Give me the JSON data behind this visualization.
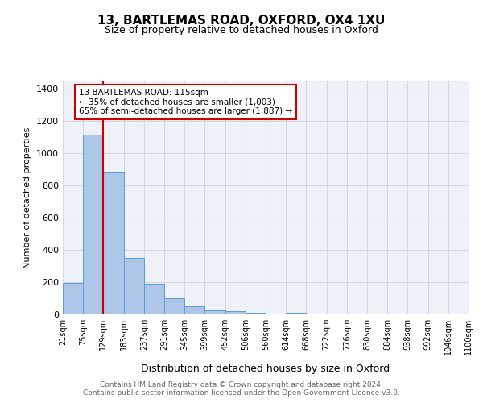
{
  "title1": "13, BARTLEMAS ROAD, OXFORD, OX4 1XU",
  "title2": "Size of property relative to detached houses in Oxford",
  "xlabel": "Distribution of detached houses by size in Oxford",
  "ylabel": "Number of detached properties",
  "bin_labels": [
    "21sqm",
    "75sqm",
    "129sqm",
    "183sqm",
    "237sqm",
    "291sqm",
    "345sqm",
    "399sqm",
    "452sqm",
    "506sqm",
    "560sqm",
    "614sqm",
    "668sqm",
    "722sqm",
    "776sqm",
    "830sqm",
    "884sqm",
    "938sqm",
    "992sqm",
    "1046sqm",
    "1100sqm"
  ],
  "bar_heights": [
    197,
    1115,
    878,
    352,
    192,
    100,
    50,
    25,
    20,
    12,
    0,
    12,
    0,
    0,
    0,
    0,
    0,
    0,
    0,
    0
  ],
  "bar_color": "#aec6e8",
  "bar_edge_color": "#5b9bd5",
  "grid_color": "#d0d8e8",
  "background_color": "#eef2f8",
  "vline_position": 1.5,
  "vline_color": "#cc0000",
  "annotation_text": "13 BARTLEMAS ROAD: 115sqm\n← 35% of detached houses are smaller (1,003)\n65% of semi-detached houses are larger (1,887) →",
  "annotation_box_color": "#ffffff",
  "annotation_box_edge": "#cc0000",
  "ylim": [
    0,
    1450
  ],
  "yticks": [
    0,
    200,
    400,
    600,
    800,
    1000,
    1200,
    1400
  ],
  "footer_text": "Contains HM Land Registry data © Crown copyright and database right 2024.\nContains public sector information licensed under the Open Government Licence v3.0.",
  "footer_color": "#666666",
  "title1_fontsize": 11,
  "title2_fontsize": 9
}
